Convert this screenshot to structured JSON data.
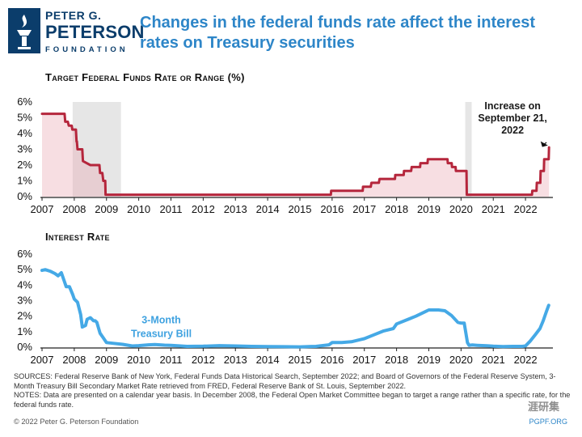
{
  "header": {
    "logo_line1": "PETER G.",
    "logo_line2": "PETERSON",
    "logo_line3": "FOUNDATION",
    "headline": "Changes in the federal funds rate affect the interest rates on Treasury securities"
  },
  "colors": {
    "fed_line": "#b5263c",
    "fed_fill": "#e8a0ad",
    "tbill_line": "#45a9e6",
    "recession": "#e6e6e6",
    "headline": "#2e86c8",
    "logo": "#0b3d6b"
  },
  "chart_data": [
    {
      "type": "line",
      "title": "Target Federal Funds Rate or Range (%)",
      "xlim": [
        2007,
        2022.8
      ],
      "ylim": [
        0,
        6
      ],
      "y_ticks": [
        "0%",
        "1%",
        "2%",
        "3%",
        "4%",
        "5%",
        "6%"
      ],
      "x_ticks": [
        "2007",
        "2008",
        "2009",
        "2010",
        "2011",
        "2012",
        "2013",
        "2014",
        "2015",
        "2016",
        "2017",
        "2018",
        "2019",
        "2020",
        "2021",
        "2022"
      ],
      "recession_bands": [
        [
          2007.95,
          2009.45
        ],
        [
          2020.13,
          2020.33
        ]
      ],
      "annotation": {
        "lines": [
          "Increase on",
          "September 21,",
          "2022"
        ],
        "x": 2022.72,
        "y": 3.25
      },
      "series": [
        {
          "name": "Target Federal Funds Rate",
          "x": [
            2007,
            2007.7,
            2007.72,
            2007.8,
            2007.83,
            2007.92,
            2007.94,
            2008.05,
            2008.07,
            2008.08,
            2008.1,
            2008.25,
            2008.27,
            2008.5,
            2008.78,
            2008.8,
            2008.87,
            2008.9,
            2008.96,
            2008.97,
            2015.96,
            2015.97,
            2016.95,
            2016.96,
            2017.2,
            2017.22,
            2017.45,
            2017.47,
            2017.95,
            2017.96,
            2018.22,
            2018.23,
            2018.45,
            2018.47,
            2018.73,
            2018.74,
            2018.96,
            2018.97,
            2019.58,
            2019.59,
            2019.71,
            2019.72,
            2019.83,
            2019.84,
            2020.17,
            2020.18,
            2022.2,
            2022.21,
            2022.34,
            2022.35,
            2022.46,
            2022.47,
            2022.57,
            2022.58,
            2022.72,
            2022.73
          ],
          "y": [
            5.25,
            5.25,
            4.75,
            4.75,
            4.5,
            4.5,
            4.25,
            4.25,
            3.5,
            3.5,
            3.0,
            3.0,
            2.25,
            2.0,
            2.0,
            1.5,
            1.5,
            1.0,
            1.0,
            0.125,
            0.125,
            0.375,
            0.375,
            0.625,
            0.625,
            0.875,
            0.875,
            1.125,
            1.125,
            1.375,
            1.375,
            1.625,
            1.625,
            1.875,
            1.875,
            2.125,
            2.125,
            2.375,
            2.375,
            2.125,
            2.125,
            1.875,
            1.875,
            1.625,
            1.625,
            0.125,
            0.125,
            0.375,
            0.375,
            0.875,
            0.875,
            1.625,
            1.625,
            2.375,
            2.375,
            3.125
          ]
        }
      ]
    },
    {
      "type": "line",
      "title": "Interest Rate",
      "xlim": [
        2007,
        2022.8
      ],
      "ylim": [
        0,
        6
      ],
      "y_ticks": [
        "0%",
        "1%",
        "2%",
        "3%",
        "4%",
        "5%",
        "6%"
      ],
      "x_ticks": [
        "2007",
        "2008",
        "2009",
        "2010",
        "2011",
        "2012",
        "2013",
        "2014",
        "2015",
        "2016",
        "2017",
        "2018",
        "2019",
        "2020",
        "2021",
        "2022"
      ],
      "series_label": {
        "lines": [
          "3-Month",
          "Treasury Bill"
        ],
        "x": 2010.7,
        "y": 1.55
      },
      "series": [
        {
          "name": "3-Month Treasury Bill",
          "x": [
            2007,
            2007.1,
            2007.25,
            2007.4,
            2007.5,
            2007.6,
            2007.7,
            2007.75,
            2007.85,
            2007.95,
            2008.0,
            2008.1,
            2008.2,
            2008.25,
            2008.35,
            2008.4,
            2008.5,
            2008.6,
            2008.65,
            2008.7,
            2008.8,
            2008.9,
            2009.0,
            2009.2,
            2009.5,
            2009.8,
            2010.0,
            2010.3,
            2010.5,
            2010.8,
            2011.0,
            2011.5,
            2012.0,
            2012.5,
            2013.0,
            2013.5,
            2014.0,
            2014.5,
            2015.0,
            2015.5,
            2015.9,
            2016.0,
            2016.3,
            2016.6,
            2016.9,
            2017.0,
            2017.3,
            2017.6,
            2017.9,
            2018.0,
            2018.3,
            2018.6,
            2018.9,
            2019.0,
            2019.3,
            2019.5,
            2019.7,
            2019.9,
            2020.0,
            2020.1,
            2020.2,
            2020.25,
            2020.35,
            2020.5,
            2020.8,
            2021.0,
            2021.3,
            2021.6,
            2021.9,
            2022.0,
            2022.15,
            2022.3,
            2022.45,
            2022.55,
            2022.65,
            2022.72
          ],
          "y": [
            4.95,
            5.0,
            4.9,
            4.75,
            4.6,
            4.8,
            4.2,
            3.9,
            3.9,
            3.4,
            3.1,
            2.9,
            2.1,
            1.3,
            1.4,
            1.8,
            1.9,
            1.7,
            1.7,
            1.6,
            0.9,
            0.6,
            0.3,
            0.25,
            0.18,
            0.08,
            0.1,
            0.15,
            0.17,
            0.13,
            0.12,
            0.05,
            0.06,
            0.1,
            0.08,
            0.05,
            0.04,
            0.03,
            0.02,
            0.05,
            0.15,
            0.3,
            0.3,
            0.35,
            0.5,
            0.55,
            0.8,
            1.05,
            1.2,
            1.5,
            1.75,
            2.0,
            2.3,
            2.4,
            2.4,
            2.35,
            2.05,
            1.6,
            1.55,
            1.55,
            0.3,
            0.12,
            0.14,
            0.12,
            0.09,
            0.06,
            0.04,
            0.05,
            0.05,
            0.08,
            0.4,
            0.8,
            1.2,
            1.7,
            2.3,
            2.7
          ]
        }
      ]
    }
  ],
  "footer": {
    "sources": "SOURCES: Federal Reserve Bank of New York, Federal Funds Data Historical Search, September 2022; and Board of Governors of the Federal Reserve System, 3-Month Treasury Bill Secondary Market Rate retrieved from FRED, Federal Reserve Bank of St. Louis, September 2022.",
    "notes": "NOTES: Data are presented on a calendar year basis. In December 2008, the Federal Open Market Committee began to target a range rather than a specific rate, for the federal funds rate.",
    "copyright": "© 2022 Peter G. Peterson Foundation",
    "site": "PGPF.ORG",
    "watermark": "涯研集"
  }
}
